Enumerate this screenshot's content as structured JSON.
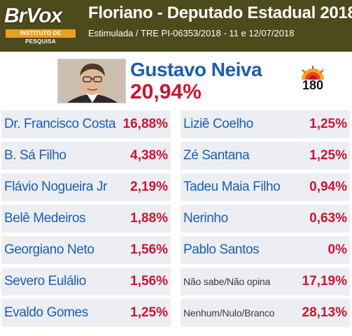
{
  "header": {
    "logo_text": "BrVox",
    "logo_sub": "INSTITUTO DE PESQUISA",
    "title": "Floriano - Deputado Estadual 2018",
    "subtitle": "Estimulada / TRE PI-06353/2018 - 11 e 12/07/2018"
  },
  "leader": {
    "name": "Gustavo Neiva",
    "percent": "20,94%",
    "photo_icon": "candidate-photo",
    "badge_text": "180",
    "badge_icon": "sun-logo-icon"
  },
  "left_column": [
    {
      "name": "Dr. Francisco Costa",
      "percent": "16,88%"
    },
    {
      "name": "B. Sá Filho",
      "percent": "4,38%"
    },
    {
      "name": "Flávio Nogueira Jr",
      "percent": "2,19%"
    },
    {
      "name": "Belê Medeiros",
      "percent": "1,88%"
    },
    {
      "name": "Georgiano Neto",
      "percent": "1,56%"
    },
    {
      "name": "Severo Eulálio",
      "percent": "1,56%"
    },
    {
      "name": "Evaldo Gomes",
      "percent": "1,25%"
    }
  ],
  "right_column": [
    {
      "name": "Liziê Coelho",
      "percent": "1,25%"
    },
    {
      "name": "Zé Santana",
      "percent": "1,25%"
    },
    {
      "name": "Tadeu Maia Filho",
      "percent": "0,94%"
    },
    {
      "name": "Nerinho",
      "percent": "0,63%"
    },
    {
      "name": "Pablo Santos",
      "percent": "0%"
    },
    {
      "name": "Não sabe/Não opina",
      "percent": "17,19%"
    },
    {
      "name": "Nenhum/Nulo/Branco",
      "percent": "28,13%"
    }
  ],
  "colors": {
    "header_bg": "#4d4a1c",
    "name_blue": "#1a5fb0",
    "percent_red": "#cc1530",
    "row_bg": "#eceef3"
  }
}
